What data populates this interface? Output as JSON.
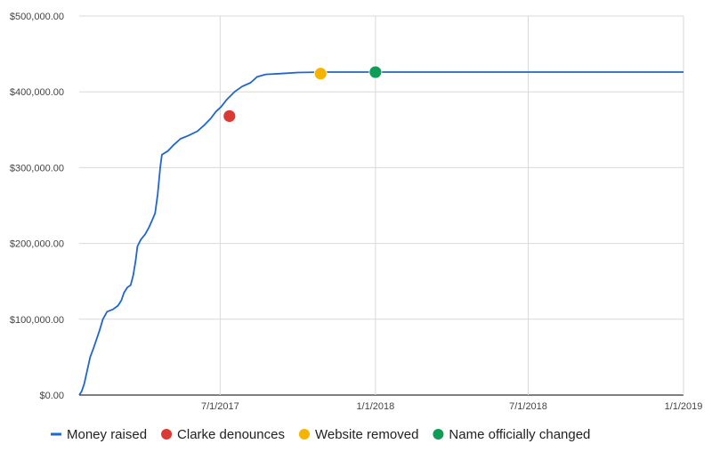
{
  "chart_data": {
    "type": "line",
    "xlabel": "",
    "ylabel": "",
    "x_ticks": [
      "7/1/2017",
      "1/1/2018",
      "7/1/2018",
      "1/1/2019"
    ],
    "x_range": [
      "2017-01-15",
      "2019-01-01"
    ],
    "y_ticks": [
      "$0.00",
      "$100,000.00",
      "$200,000.00",
      "$300,000.00",
      "$400,000.00",
      "$500,000.00"
    ],
    "ylim": [
      0,
      500000
    ],
    "grid": true,
    "legend_position": "bottom",
    "series": [
      {
        "name": "Money raised",
        "color": "#1f66d1",
        "points": [
          [
            "2017-01-15",
            0
          ],
          [
            "2017-01-18",
            5000
          ],
          [
            "2017-01-21",
            15000
          ],
          [
            "2017-01-24",
            30000
          ],
          [
            "2017-01-28",
            50000
          ],
          [
            "2017-02-01",
            62000
          ],
          [
            "2017-02-05",
            75000
          ],
          [
            "2017-02-08",
            85000
          ],
          [
            "2017-02-12",
            100000
          ],
          [
            "2017-02-17",
            110000
          ],
          [
            "2017-02-24",
            113000
          ],
          [
            "2017-03-02",
            118000
          ],
          [
            "2017-03-06",
            125000
          ],
          [
            "2017-03-09",
            135000
          ],
          [
            "2017-03-13",
            142000
          ],
          [
            "2017-03-17",
            145000
          ],
          [
            "2017-03-20",
            158000
          ],
          [
            "2017-03-23",
            178000
          ],
          [
            "2017-03-25",
            196000
          ],
          [
            "2017-03-29",
            205000
          ],
          [
            "2017-04-03",
            212000
          ],
          [
            "2017-04-08",
            222000
          ],
          [
            "2017-04-12",
            232000
          ],
          [
            "2017-04-15",
            240000
          ],
          [
            "2017-04-18",
            265000
          ],
          [
            "2017-04-21",
            300000
          ],
          [
            "2017-04-23",
            317000
          ],
          [
            "2017-04-30",
            322000
          ],
          [
            "2017-05-07",
            330000
          ],
          [
            "2017-05-15",
            338000
          ],
          [
            "2017-05-24",
            342000
          ],
          [
            "2017-06-04",
            348000
          ],
          [
            "2017-06-12",
            356000
          ],
          [
            "2017-06-20",
            365000
          ],
          [
            "2017-06-26",
            374000
          ],
          [
            "2017-07-02",
            380000
          ],
          [
            "2017-07-09",
            390000
          ],
          [
            "2017-07-18",
            400000
          ],
          [
            "2017-07-27",
            407000
          ],
          [
            "2017-08-06",
            412000
          ],
          [
            "2017-08-14",
            420000
          ],
          [
            "2017-08-24",
            423000
          ],
          [
            "2017-09-09",
            424000
          ],
          [
            "2017-10-01",
            425500
          ],
          [
            "2017-11-01",
            426000
          ],
          [
            "2018-01-01",
            426000
          ],
          [
            "2019-01-01",
            426000
          ]
        ]
      }
    ],
    "events": [
      {
        "name": "Clarke denounces",
        "color": "#db3a34",
        "x": "2017-07-12",
        "y": 368000
      },
      {
        "name": "Website removed",
        "color": "#f4b400",
        "x": "2017-10-28",
        "y": 424000
      },
      {
        "name": "Name officially changed",
        "color": "#109d58",
        "x": "2018-01-01",
        "y": 426000
      }
    ]
  }
}
